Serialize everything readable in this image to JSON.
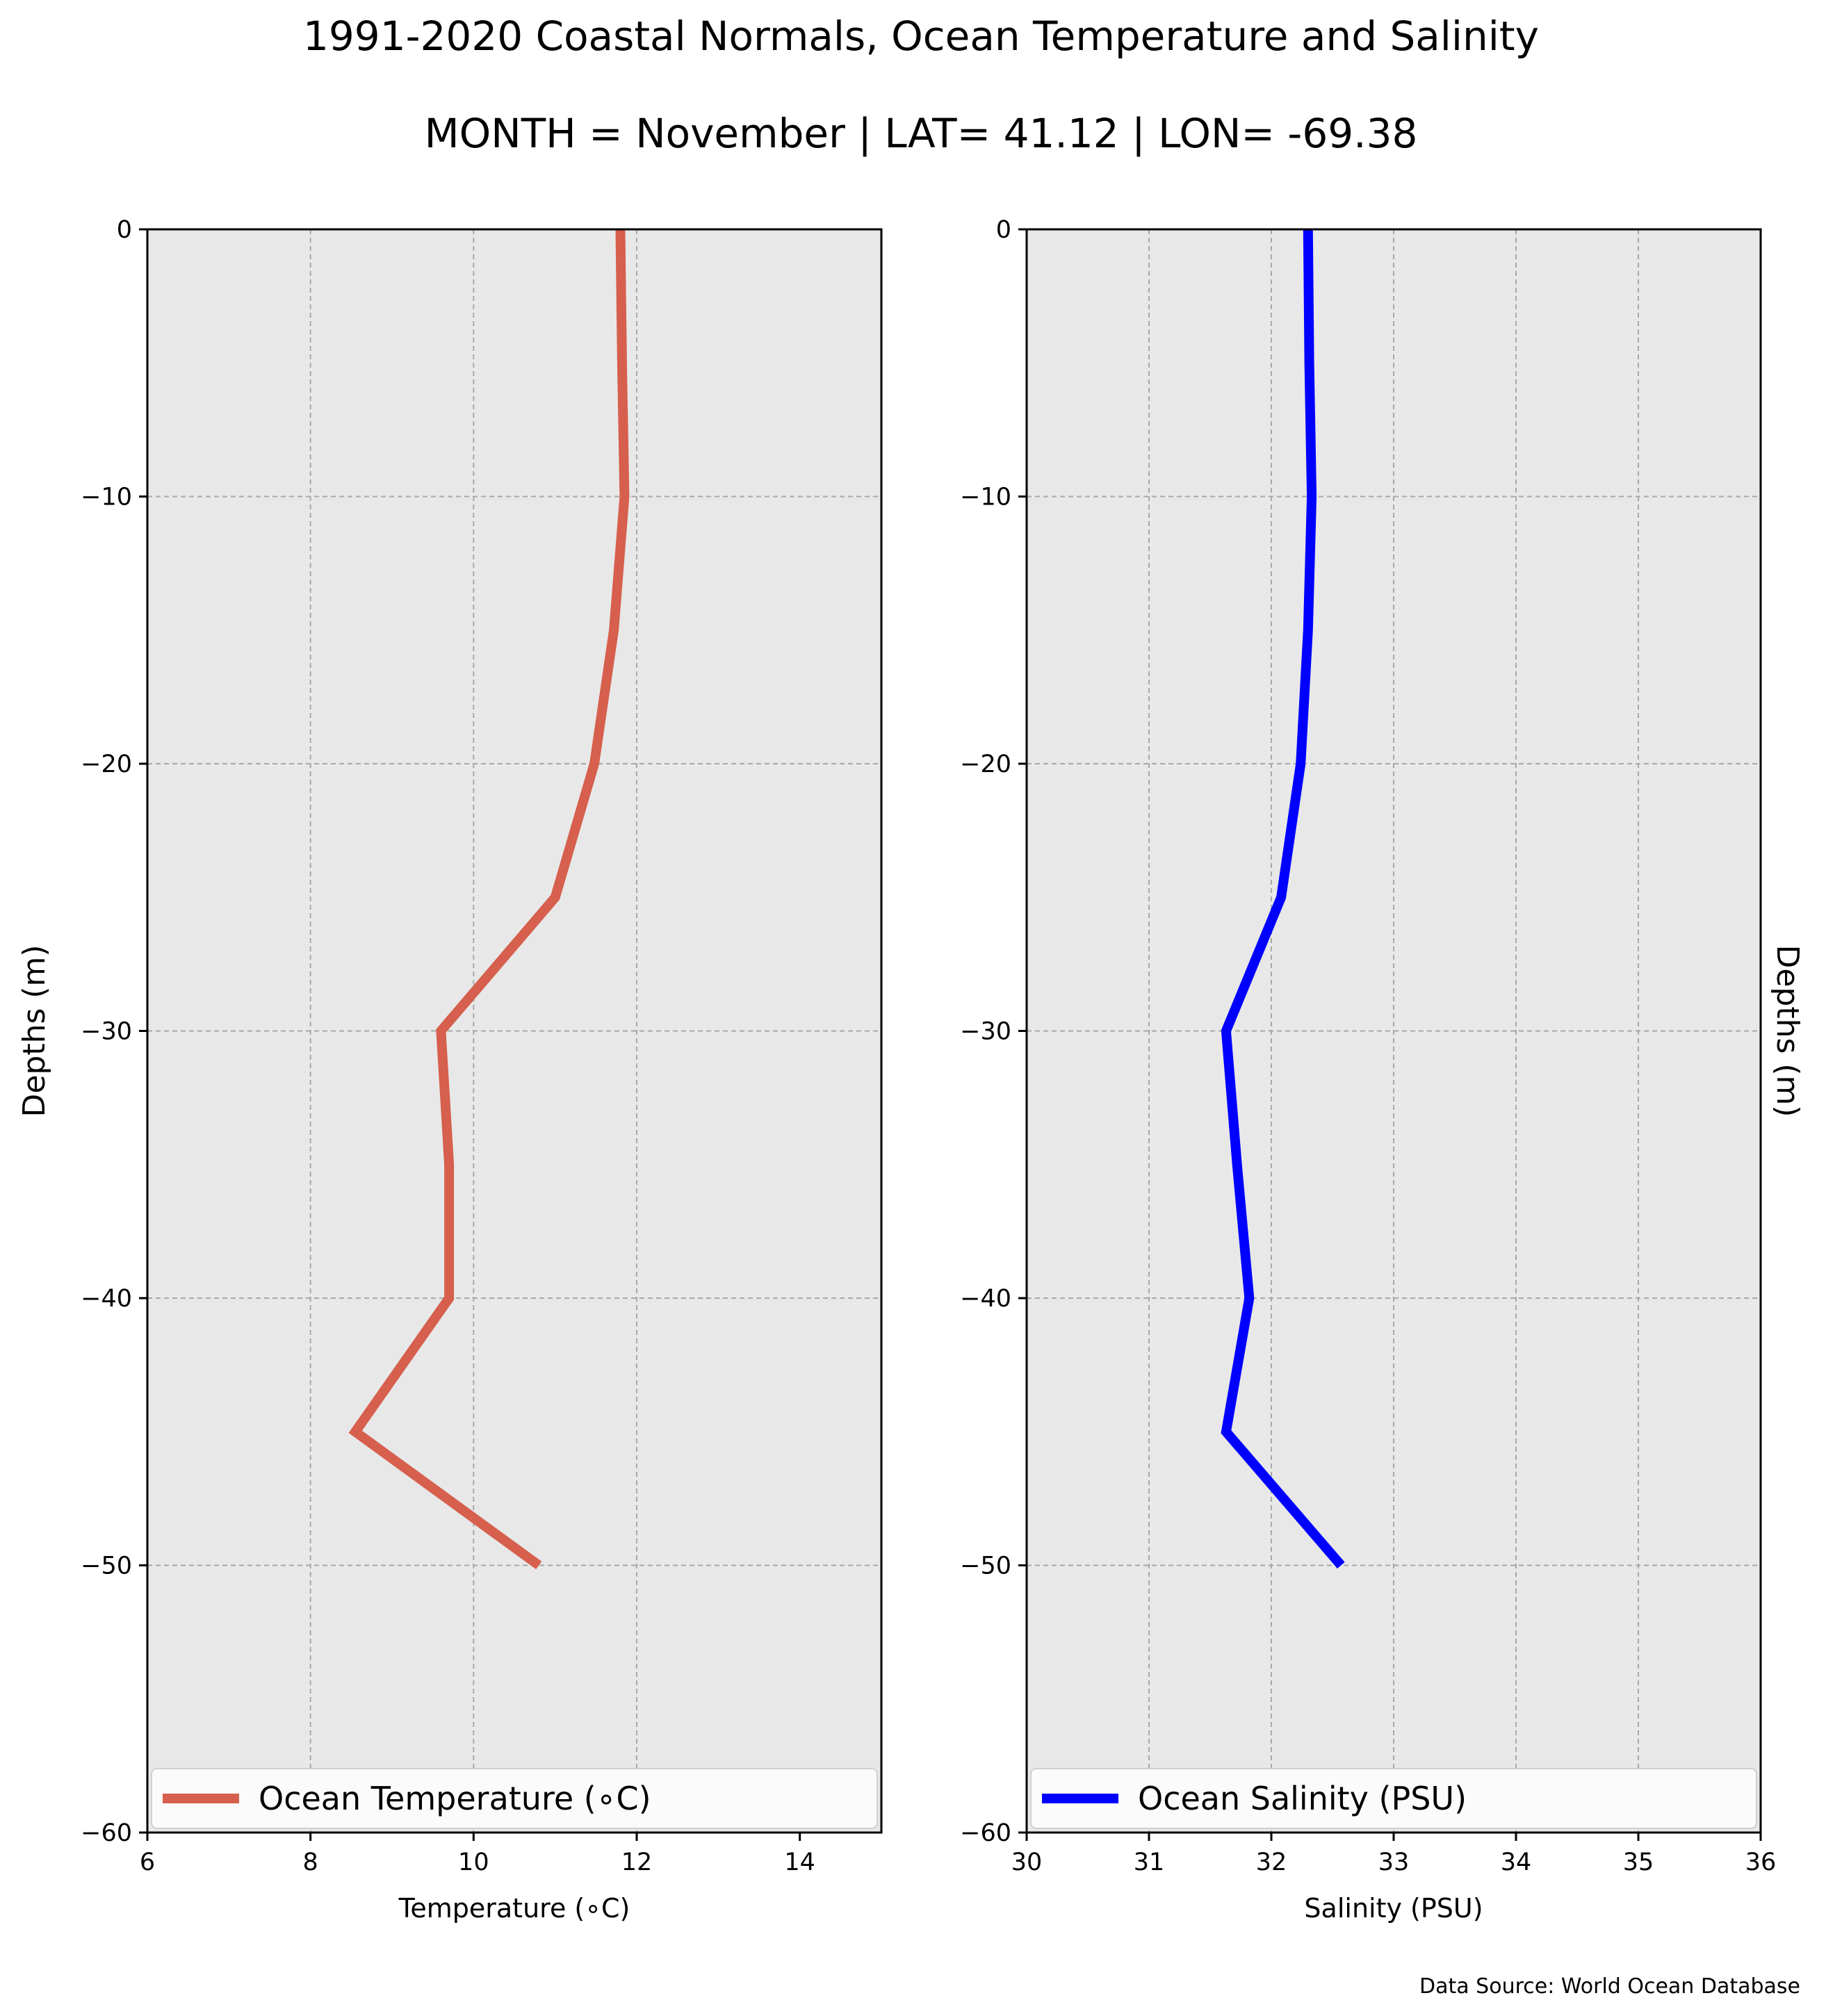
{
  "page": {
    "title": "1991-2020 Coastal Normals, Ocean Temperature and Salinity",
    "subtitle": "MONTH = November | LAT= 41.12 | LON= -69.38",
    "source": "Data Source: World Ocean Database"
  },
  "chart_data": [
    {
      "type": "line",
      "xlabel": "Temperature (∘C)",
      "ylabel": "Depths (m)",
      "xlim": [
        6,
        15
      ],
      "ylim": [
        -60,
        0
      ],
      "xticks": [
        6,
        8,
        10,
        12,
        14
      ],
      "yticks": [
        0,
        -10,
        -20,
        -30,
        -40,
        -50,
        -60
      ],
      "x_tick_labels": [
        "6",
        "8",
        "10",
        "12",
        "14"
      ],
      "y_tick_labels": [
        "0",
        "−10",
        "−20",
        "−30",
        "−40",
        "−50",
        "−60"
      ],
      "grid": true,
      "legend_position": "bottom",
      "series": [
        {
          "name": "Ocean Temperature (∘C)",
          "color": "#d65f4d",
          "x": [
            11.8,
            11.82,
            11.85,
            11.72,
            11.48,
            11.0,
            9.6,
            9.7,
            9.7,
            8.55,
            10.8
          ],
          "y": [
            0,
            -5,
            -10,
            -15,
            -20,
            -25,
            -30,
            -35,
            -40,
            -45,
            -50
          ]
        }
      ]
    },
    {
      "type": "line",
      "xlabel": "Salinity (PSU)",
      "ylabel": "Depths (m)",
      "xlim": [
        30,
        36
      ],
      "ylim": [
        -60,
        0
      ],
      "xticks": [
        30,
        31,
        32,
        33,
        34,
        35,
        36
      ],
      "yticks": [
        0,
        -10,
        -20,
        -30,
        -40,
        -50,
        -60
      ],
      "x_tick_labels": [
        "30",
        "31",
        "32",
        "33",
        "34",
        "35",
        "36"
      ],
      "y_tick_labels": [
        "0",
        "−10",
        "−20",
        "−30",
        "−40",
        "−50",
        "−60"
      ],
      "grid": true,
      "legend_position": "bottom",
      "series": [
        {
          "name": "Ocean Salinity (PSU)",
          "color": "#0000ff",
          "x": [
            32.3,
            32.31,
            32.33,
            32.3,
            32.24,
            32.08,
            31.63,
            31.72,
            31.82,
            31.63,
            32.57
          ],
          "y": [
            0,
            -5,
            -10,
            -15,
            -20,
            -25,
            -30,
            -35,
            -40,
            -45,
            -50
          ]
        }
      ]
    }
  ]
}
